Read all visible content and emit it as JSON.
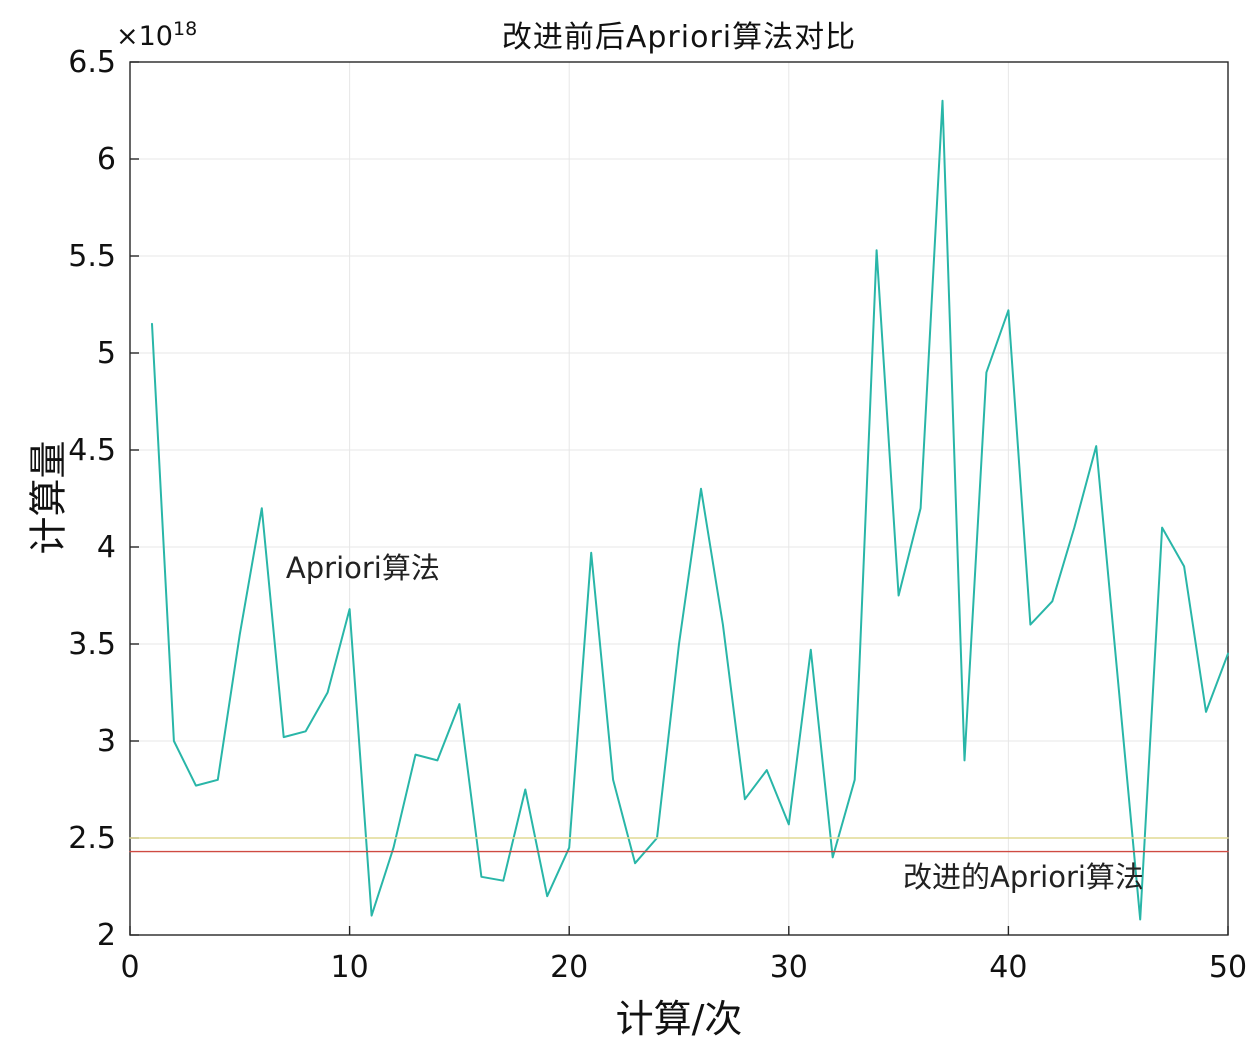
{
  "chart_data": {
    "type": "line",
    "title": "改进前后Apriori算法对比",
    "xlabel": "计算/次",
    "ylabel": "计算量",
    "y_exponent_base": "×10",
    "y_exponent_power": "18",
    "xlim": [
      0,
      50
    ],
    "ylim": [
      2,
      6.5
    ],
    "xticks": [
      0,
      10,
      20,
      30,
      40,
      50
    ],
    "yticks": [
      2,
      2.5,
      3,
      3.5,
      4,
      4.5,
      5,
      5.5,
      6,
      6.5
    ],
    "grid": true,
    "legend_position": "none",
    "axis_color": "#262626",
    "grid_color": "#e7e7e7",
    "series": [
      {
        "name": "Apriori算法",
        "color": "#29b6a8",
        "width": 2,
        "x_start": 1,
        "values": [
          5.15,
          3.0,
          2.77,
          2.8,
          3.55,
          4.2,
          3.02,
          3.05,
          3.25,
          3.68,
          2.1,
          2.45,
          2.93,
          2.9,
          3.19,
          2.3,
          2.28,
          2.75,
          2.2,
          2.45,
          3.97,
          2.8,
          2.37,
          2.5,
          3.5,
          4.3,
          3.6,
          2.7,
          2.85,
          2.57,
          3.47,
          2.4,
          2.8,
          5.53,
          3.75,
          4.2,
          6.3,
          2.9,
          4.9,
          5.22,
          3.6,
          3.72,
          4.1,
          4.52,
          3.3,
          2.08,
          4.1,
          3.9,
          3.15,
          3.45
        ]
      },
      {
        "name": "",
        "color": "#e0da93",
        "width": 1.4,
        "constant": 2.5
      },
      {
        "name": "改进的Apriori算法",
        "color": "#cf4a42",
        "width": 1.4,
        "constant": 2.43
      }
    ],
    "annotations": [
      {
        "text": "Apriori算法",
        "x": 7.1,
        "y": 3.9
      },
      {
        "text": "改进的Apriori算法",
        "x": 35.2,
        "y": 2.31
      }
    ]
  }
}
